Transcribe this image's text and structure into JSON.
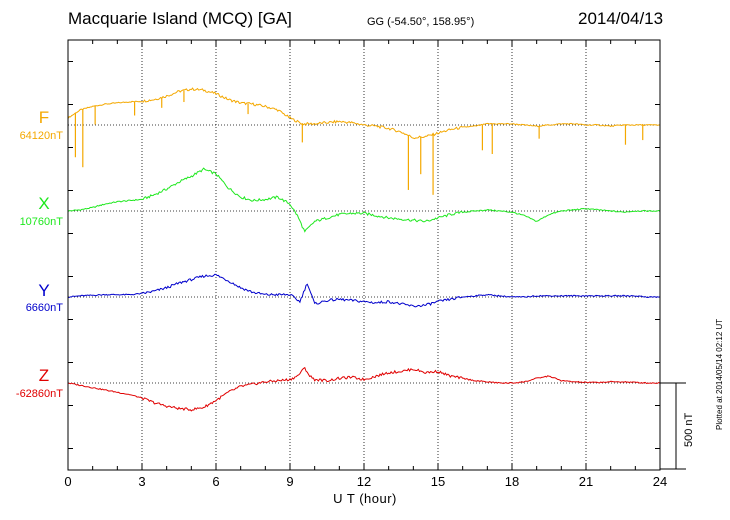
{
  "header": {
    "station": "Macquarie Island (MCQ)  [GA]",
    "coords": "GG (-54.50°, 158.95°)",
    "date": "2014/04/13"
  },
  "chart_data": {
    "type": "line",
    "xlabel": "U T (hour)",
    "xlim": [
      0,
      24
    ],
    "xticks": [
      "0",
      "3",
      "6",
      "9",
      "12",
      "15",
      "18",
      "21",
      "24"
    ],
    "grid": true,
    "scale_bar": {
      "value": 500,
      "label": "500 nT"
    },
    "series": [
      {
        "name": "F",
        "baseline_label": "64120nT",
        "color": "#f4a800",
        "baseline_nT": 64120,
        "hours": [
          0,
          0.5,
          1,
          1.5,
          2,
          2.5,
          3,
          3.5,
          4,
          4.5,
          5,
          5.5,
          6,
          6.5,
          7,
          7.5,
          8,
          8.5,
          9,
          9.5,
          10,
          10.5,
          11,
          11.5,
          12,
          12.5,
          13,
          13.5,
          14,
          14.5,
          15,
          15.5,
          16,
          16.5,
          17,
          17.5,
          18,
          18.5,
          19,
          19.5,
          20,
          20.5,
          21,
          21.5,
          22,
          22.5,
          23,
          23.5,
          24
        ],
        "values": [
          60,
          130,
          160,
          180,
          190,
          200,
          205,
          220,
          250,
          290,
          310,
          300,
          270,
          220,
          190,
          180,
          160,
          130,
          60,
          10,
          10,
          20,
          30,
          20,
          0,
          -10,
          -30,
          -60,
          -110,
          -100,
          -70,
          -40,
          -20,
          -10,
          10,
          10,
          10,
          0,
          -10,
          0,
          10,
          10,
          0,
          0,
          -10,
          0,
          0,
          0,
          0
        ],
        "spikes": [
          [
            0.3,
            -380
          ],
          [
            0.6,
            -500
          ],
          [
            1.1,
            -160
          ],
          [
            2.7,
            -120
          ],
          [
            3.8,
            -90
          ],
          [
            4.7,
            -100
          ],
          [
            7.3,
            -90
          ],
          [
            9.5,
            -160
          ],
          [
            13.8,
            -470
          ],
          [
            14.3,
            -320
          ],
          [
            14.8,
            -520
          ],
          [
            16.8,
            -220
          ],
          [
            17.2,
            -260
          ],
          [
            19.1,
            -110
          ],
          [
            22.6,
            -170
          ],
          [
            23.3,
            -130
          ]
        ]
      },
      {
        "name": "X",
        "baseline_label": "10760nT",
        "color": "#1ee81e",
        "baseline_nT": 10760,
        "hours": [
          0,
          0.5,
          1,
          1.5,
          2,
          2.5,
          3,
          3.5,
          4,
          4.5,
          5,
          5.5,
          6,
          6.5,
          7,
          7.5,
          8,
          8.5,
          9,
          9.3,
          9.6,
          10,
          10.5,
          11,
          11.5,
          12,
          12.5,
          13,
          13.5,
          14,
          14.5,
          15,
          15.5,
          16,
          16.5,
          17,
          17.5,
          18,
          18.5,
          19,
          19.5,
          20,
          20.5,
          21,
          21.5,
          22,
          22.5,
          23,
          23.5,
          24
        ],
        "values": [
          0,
          10,
          30,
          60,
          80,
          90,
          100,
          140,
          190,
          250,
          300,
          360,
          320,
          200,
          120,
          90,
          100,
          120,
          60,
          -40,
          -180,
          -90,
          -60,
          -30,
          -20,
          -20,
          -40,
          -60,
          -70,
          -80,
          -90,
          -60,
          -30,
          -10,
          0,
          10,
          0,
          -10,
          -40,
          -90,
          -30,
          0,
          10,
          20,
          10,
          0,
          -10,
          0,
          0,
          0
        ],
        "spikes": []
      },
      {
        "name": "Y",
        "baseline_label": "6660nT",
        "color": "#0000cc",
        "baseline_nT": 6660,
        "hours": [
          0,
          0.5,
          1,
          1.5,
          2,
          2.5,
          3,
          3.5,
          4,
          4.5,
          5,
          5.5,
          6,
          6.5,
          7,
          7.5,
          8,
          8.5,
          9,
          9.4,
          9.7,
          10,
          10.5,
          11,
          11.5,
          12,
          12.5,
          13,
          13.5,
          14,
          14.5,
          15,
          15.5,
          16,
          16.5,
          17,
          17.5,
          18,
          18.5,
          19,
          19.5,
          20,
          20.5,
          21,
          21.5,
          22,
          22.5,
          23,
          23.5,
          24
        ],
        "values": [
          0,
          10,
          15,
          20,
          20,
          20,
          30,
          50,
          80,
          120,
          150,
          180,
          190,
          140,
          80,
          40,
          20,
          20,
          20,
          -40,
          120,
          -60,
          -30,
          -20,
          -30,
          -40,
          -50,
          -40,
          -60,
          -80,
          -70,
          -40,
          -20,
          0,
          10,
          20,
          10,
          0,
          0,
          10,
          10,
          10,
          10,
          10,
          10,
          10,
          10,
          10,
          0,
          0
        ],
        "spikes": []
      },
      {
        "name": "Z",
        "baseline_label": "-62860nT",
        "color": "#e00000",
        "baseline_nT": -62860,
        "hours": [
          0,
          0.5,
          1,
          1.5,
          2,
          2.5,
          3,
          3.5,
          4,
          4.5,
          5,
          5.5,
          6,
          6.5,
          7,
          7.5,
          8,
          8.5,
          9,
          9.3,
          9.6,
          9.8,
          10,
          10.5,
          11,
          11.5,
          12,
          12.5,
          13,
          13.5,
          14,
          14.5,
          15,
          15.5,
          16,
          16.5,
          17,
          17.5,
          18,
          18.5,
          19,
          19.5,
          20,
          20.5,
          21,
          21.5,
          22,
          22.5,
          23,
          23.5,
          24
        ],
        "values": [
          0,
          -20,
          -40,
          -60,
          -80,
          -100,
          -130,
          -170,
          -200,
          -220,
          -230,
          -210,
          -150,
          -80,
          -30,
          -10,
          10,
          20,
          30,
          60,
          130,
          60,
          30,
          20,
          40,
          50,
          30,
          60,
          90,
          100,
          120,
          90,
          100,
          60,
          40,
          20,
          10,
          0,
          0,
          10,
          40,
          60,
          20,
          10,
          5,
          5,
          10,
          10,
          5,
          0,
          0
        ],
        "spikes": []
      }
    ]
  },
  "meta": {
    "plotted": "Plotted at 2014/05/14 02:12 UT"
  }
}
